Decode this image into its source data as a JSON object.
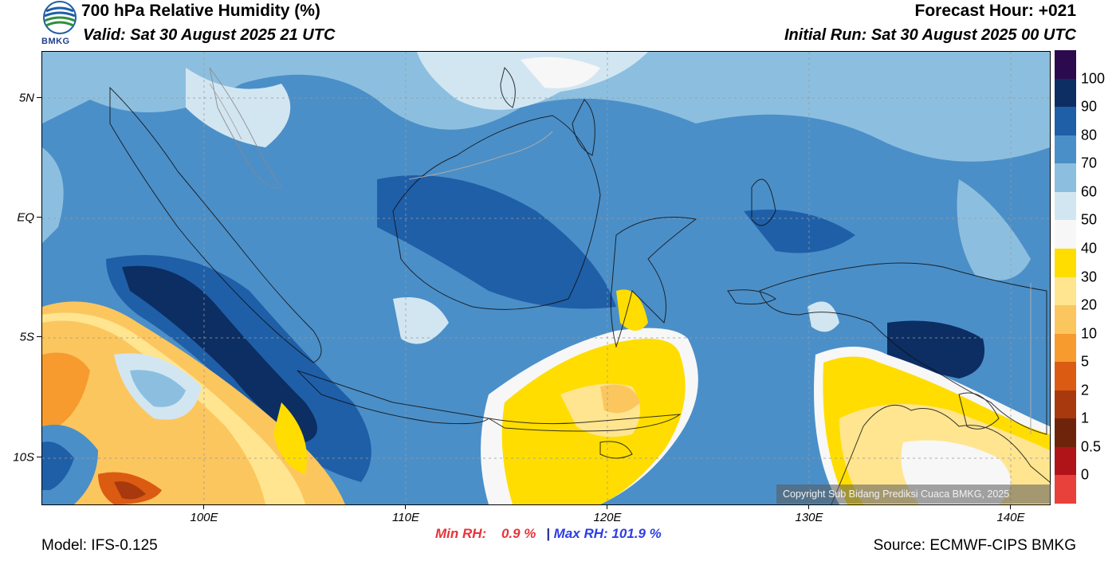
{
  "header": {
    "title": "700 hPa Relative Humidity (%)",
    "valid": "Valid: Sat 30 August 2025 21 UTC",
    "forecast_hour": "Forecast Hour: +021",
    "initial_run": "Initial Run: Sat 30 August 2025 00 UTC",
    "logo_text": "BMKG"
  },
  "map": {
    "lat_labels": [
      "5N",
      "EQ",
      "5S",
      "10S"
    ],
    "lon_labels": [
      "100E",
      "110E",
      "120E",
      "130E",
      "140E"
    ],
    "copyright": "Copyright Sub Bidang Prediksi Cuaca BMKG, 2025"
  },
  "colorbar": {
    "labels": [
      "100",
      "90",
      "80",
      "70",
      "60",
      "50",
      "40",
      "30",
      "20",
      "10",
      "5",
      "2",
      "1",
      "0.5",
      "0"
    ],
    "colors": [
      "#2b0a4e",
      "#0c2e63",
      "#1f5fa8",
      "#4b8fc8",
      "#8cbfdf",
      "#d2e6f2",
      "#f7f7f7",
      "#ffdd00",
      "#ffe58f",
      "#fcc65e",
      "#f79b2e",
      "#db5b13",
      "#a8390e",
      "#6e240b",
      "#b01419",
      "#e8403b"
    ]
  },
  "stats": {
    "min_label": "Min RH:",
    "min_value": "0.9 %",
    "separator": "|",
    "max_label": "Max RH:",
    "max_value": "101.9 %"
  },
  "footer": {
    "model": "Model: IFS-0.125",
    "source": "Source: ECMWF-CIPS BMKG"
  }
}
